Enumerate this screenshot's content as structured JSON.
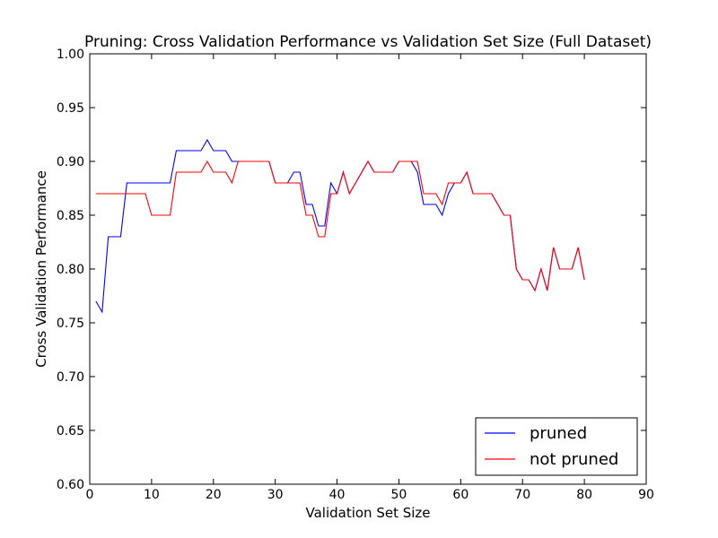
{
  "chart_data": {
    "type": "line",
    "title": "Pruning: Cross Validation Performance vs Validation Set Size (Full Dataset)",
    "xlabel": "Validation Set Size",
    "ylabel": "Cross Validation Performance",
    "xlim": [
      0,
      90
    ],
    "ylim": [
      0.6,
      1.0
    ],
    "x_ticks": [
      "0",
      "10",
      "20",
      "30",
      "40",
      "50",
      "60",
      "70",
      "80",
      "90"
    ],
    "y_ticks": [
      "0.60",
      "0.65",
      "0.70",
      "0.75",
      "0.80",
      "0.85",
      "0.90",
      "0.95",
      "1.00"
    ],
    "grid": false,
    "legend_position": "lower-right",
    "x": [
      1,
      2,
      3,
      4,
      5,
      6,
      7,
      8,
      9,
      10,
      11,
      12,
      13,
      14,
      15,
      16,
      17,
      18,
      19,
      20,
      21,
      22,
      23,
      24,
      25,
      26,
      27,
      28,
      29,
      30,
      31,
      32,
      33,
      34,
      35,
      36,
      37,
      38,
      39,
      40,
      41,
      42,
      43,
      44,
      45,
      46,
      47,
      48,
      49,
      50,
      51,
      52,
      53,
      54,
      55,
      56,
      57,
      58,
      59,
      60,
      61,
      62,
      63,
      64,
      65,
      66,
      67,
      68,
      69,
      70,
      71,
      72,
      73,
      74,
      75,
      76,
      77,
      78,
      79,
      80
    ],
    "series": [
      {
        "name": "pruned",
        "color": "#0000ff",
        "values": [
          0.77,
          0.76,
          0.83,
          0.83,
          0.83,
          0.88,
          0.88,
          0.88,
          0.88,
          0.88,
          0.88,
          0.88,
          0.88,
          0.91,
          0.91,
          0.91,
          0.91,
          0.91,
          0.92,
          0.91,
          0.91,
          0.91,
          0.9,
          0.9,
          0.9,
          0.9,
          0.9,
          0.9,
          0.9,
          0.88,
          0.88,
          0.88,
          0.89,
          0.89,
          0.86,
          0.86,
          0.84,
          0.84,
          0.88,
          0.87,
          0.89,
          0.87,
          0.88,
          0.89,
          0.9,
          0.89,
          0.89,
          0.89,
          0.89,
          0.9,
          0.9,
          0.9,
          0.89,
          0.86,
          0.86,
          0.86,
          0.85,
          0.87,
          0.88,
          0.88,
          0.89,
          0.87,
          0.87,
          0.87,
          0.87,
          0.86,
          0.85,
          0.85,
          0.8,
          0.79,
          0.79,
          0.78,
          0.8,
          0.78,
          0.82,
          0.8,
          0.8,
          0.8,
          0.82,
          0.79
        ]
      },
      {
        "name": "not pruned",
        "color": "#ff0000",
        "values": [
          0.87,
          0.87,
          0.87,
          0.87,
          0.87,
          0.87,
          0.87,
          0.87,
          0.87,
          0.85,
          0.85,
          0.85,
          0.85,
          0.89,
          0.89,
          0.89,
          0.89,
          0.89,
          0.9,
          0.89,
          0.89,
          0.89,
          0.88,
          0.9,
          0.9,
          0.9,
          0.9,
          0.9,
          0.9,
          0.88,
          0.88,
          0.88,
          0.88,
          0.88,
          0.85,
          0.85,
          0.83,
          0.83,
          0.87,
          0.87,
          0.89,
          0.87,
          0.88,
          0.89,
          0.9,
          0.89,
          0.89,
          0.89,
          0.89,
          0.9,
          0.9,
          0.9,
          0.9,
          0.87,
          0.87,
          0.87,
          0.86,
          0.88,
          0.88,
          0.88,
          0.89,
          0.87,
          0.87,
          0.87,
          0.87,
          0.86,
          0.85,
          0.85,
          0.8,
          0.79,
          0.79,
          0.78,
          0.8,
          0.78,
          0.82,
          0.8,
          0.8,
          0.8,
          0.82,
          0.79
        ]
      }
    ]
  }
}
